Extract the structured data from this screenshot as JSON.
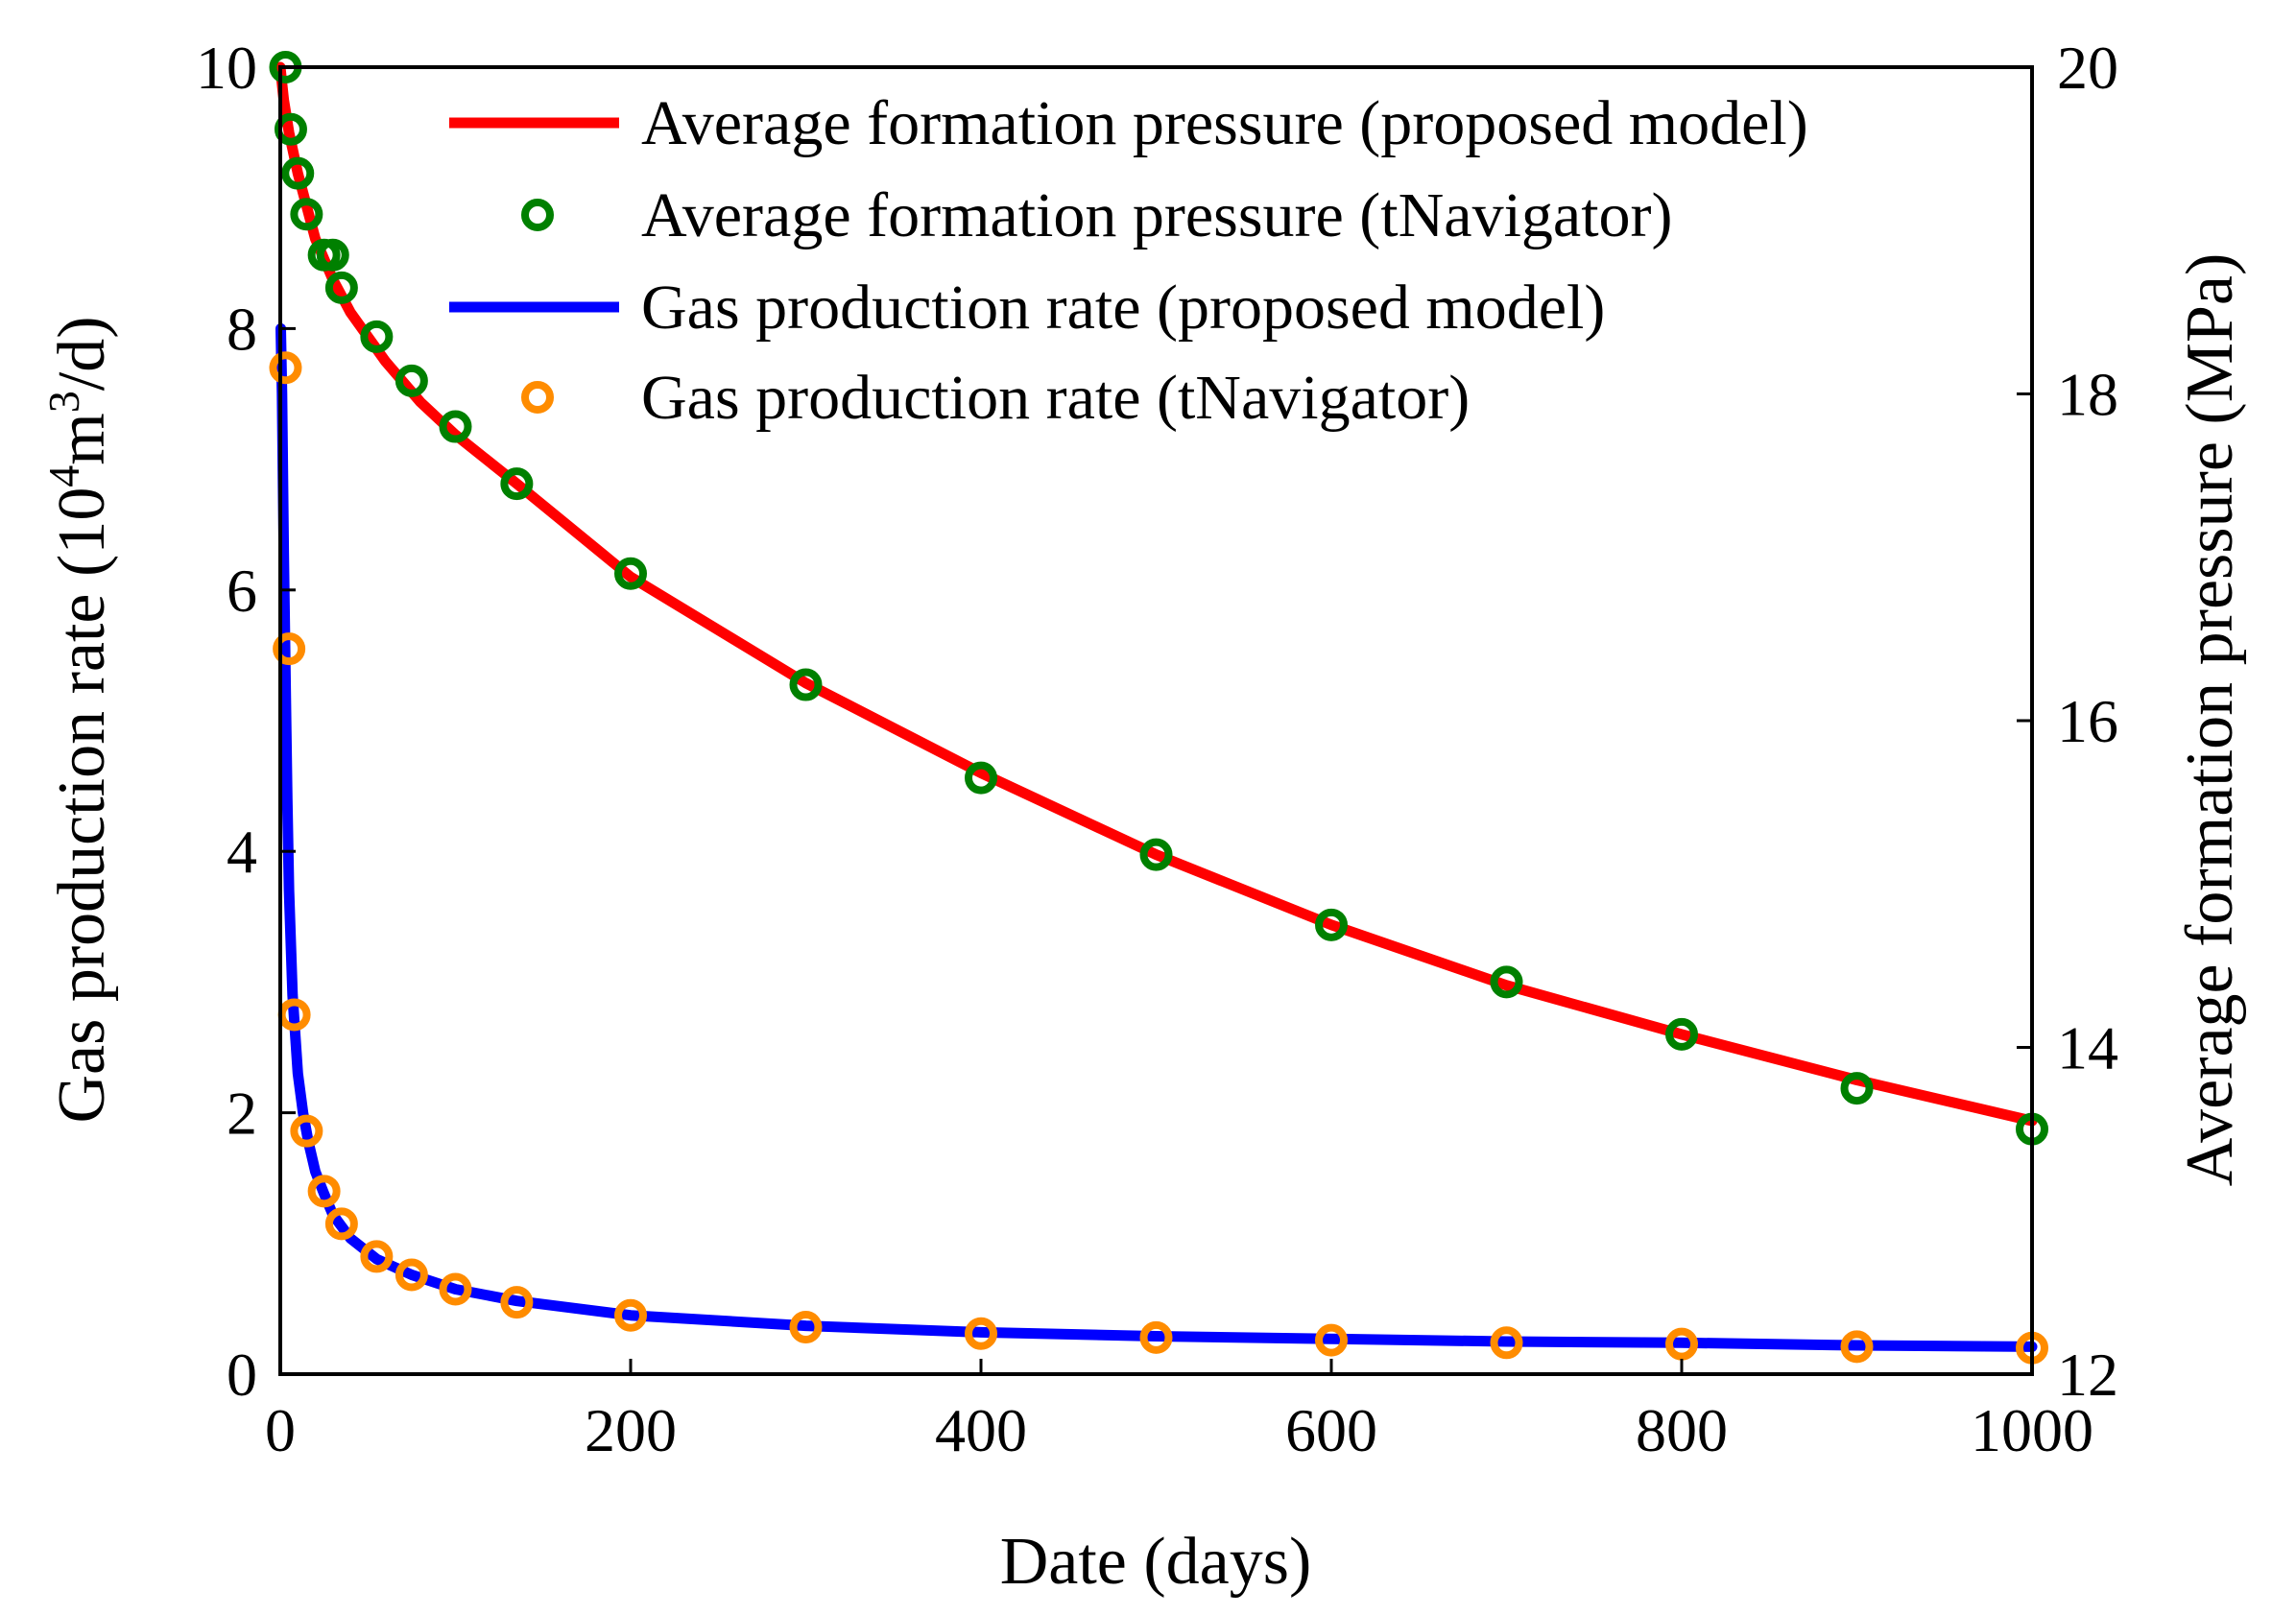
{
  "chart_data": {
    "type": "line",
    "xlabel": "Date (days)",
    "ylabel_left": {
      "pre": "Gas production rate (10",
      "sup1": "4",
      "mid": "m",
      "sup2": "3",
      "post": "/d)"
    },
    "ylabel_right": "Average formation pressure (MPa)",
    "xlim": [
      0,
      1000
    ],
    "ylim_left": [
      0,
      10
    ],
    "ylim_right": [
      12,
      20
    ],
    "x_ticks": [
      "0",
      "200",
      "400",
      "600",
      "800",
      "1000"
    ],
    "y_left_ticks": [
      "0",
      "2",
      "4",
      "6",
      "8",
      "10"
    ],
    "y_right_ticks": [
      "12",
      "14",
      "16",
      "18",
      "20"
    ],
    "grid": false,
    "legend_position": "top-right",
    "series": [
      {
        "name": "Average formation pressure (proposed model)",
        "kind": "line",
        "axis": "right",
        "color": "#ff0000",
        "x": [
          0,
          2,
          5,
          10,
          15,
          20,
          30,
          40,
          60,
          80,
          100,
          135,
          200,
          300,
          400,
          500,
          600,
          700,
          800,
          900,
          1000
        ],
        "y": [
          20.0,
          19.8,
          19.6,
          19.35,
          19.15,
          18.95,
          18.7,
          18.5,
          18.2,
          17.95,
          17.75,
          17.45,
          16.88,
          16.23,
          15.68,
          15.18,
          14.75,
          14.38,
          14.08,
          13.8,
          13.55
        ]
      },
      {
        "name": "Average formation pressure (tNavigator)",
        "kind": "marker",
        "axis": "right",
        "color": "#008000",
        "x": [
          3,
          6,
          10,
          15,
          25,
          30,
          35,
          55,
          75,
          100,
          135,
          200,
          300,
          400,
          500,
          600,
          700,
          800,
          900,
          1000
        ],
        "y": [
          20.0,
          19.62,
          19.35,
          19.1,
          18.85,
          18.85,
          18.65,
          18.35,
          18.08,
          17.8,
          17.45,
          16.9,
          16.22,
          15.65,
          15.18,
          14.75,
          14.4,
          14.08,
          13.75,
          13.5
        ]
      },
      {
        "name": "Gas production rate (proposed model)",
        "kind": "line",
        "axis": "left",
        "color": "#0000ff",
        "x": [
          0.3,
          1,
          2,
          3,
          4,
          5,
          7,
          10,
          13,
          16,
          20,
          25,
          30,
          40,
          55,
          75,
          100,
          135,
          200,
          300,
          400,
          500,
          600,
          700,
          800,
          900,
          1000
        ],
        "y": [
          8.0,
          7.5,
          6.3,
          5.3,
          4.4,
          3.7,
          2.9,
          2.3,
          2.0,
          1.78,
          1.55,
          1.38,
          1.22,
          1.04,
          0.88,
          0.76,
          0.65,
          0.56,
          0.45,
          0.37,
          0.32,
          0.29,
          0.27,
          0.25,
          0.24,
          0.22,
          0.21
        ]
      },
      {
        "name": "Gas production rate (tNavigator)",
        "kind": "marker",
        "axis": "left",
        "color": "#ff8c00",
        "x": [
          3,
          5,
          8,
          15,
          25,
          35,
          55,
          75,
          100,
          135,
          200,
          300,
          400,
          500,
          600,
          700,
          800,
          900,
          1000
        ],
        "y": [
          7.7,
          5.55,
          2.75,
          1.86,
          1.4,
          1.15,
          0.9,
          0.76,
          0.65,
          0.55,
          0.45,
          0.36,
          0.31,
          0.28,
          0.26,
          0.24,
          0.23,
          0.21,
          0.2
        ]
      }
    ]
  }
}
